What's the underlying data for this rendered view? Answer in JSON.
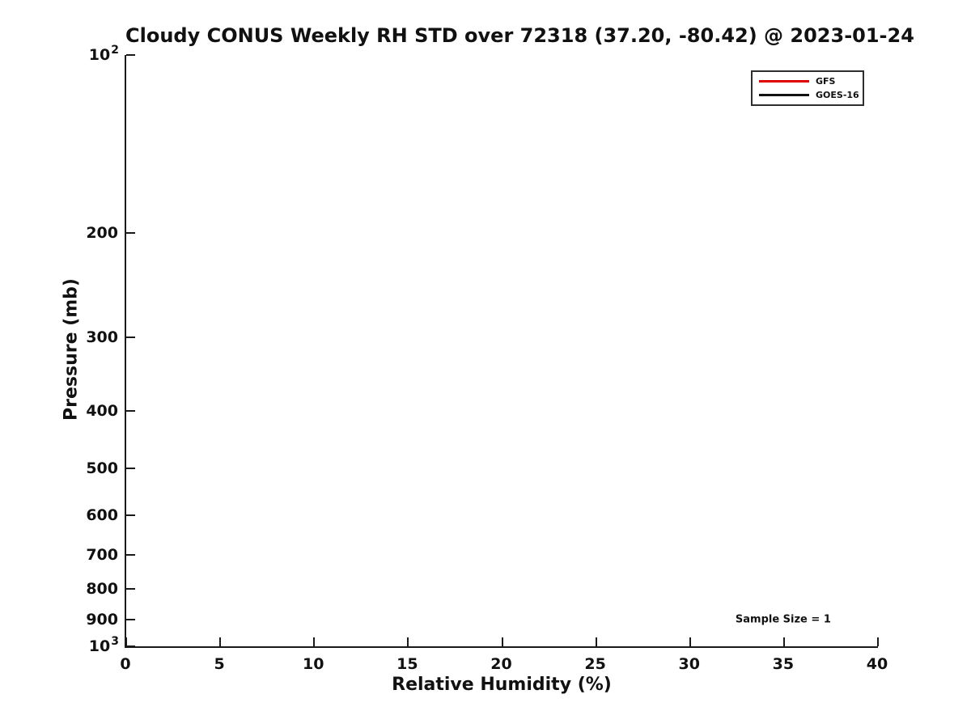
{
  "chart_data": {
    "type": "line",
    "title": "Cloudy CONUS Weekly RH STD over 72318 (37.20, -80.42) @ 2023-01-24",
    "xlabel": "Relative Humidity (%)",
    "ylabel": "Pressure (mb)",
    "grid": false,
    "x_axis": {
      "scale": "linear",
      "min": 0,
      "max": 40,
      "ticks": [
        0,
        5,
        10,
        15,
        20,
        25,
        30,
        35,
        40
      ]
    },
    "y_axis": {
      "scale": "log",
      "min": 100,
      "max": 1000,
      "inverted": true,
      "ticks": [
        {
          "value": 100,
          "label": "10^2"
        },
        {
          "value": 200,
          "label": "200"
        },
        {
          "value": 300,
          "label": "300"
        },
        {
          "value": 400,
          "label": "400"
        },
        {
          "value": 500,
          "label": "500"
        },
        {
          "value": 600,
          "label": "600"
        },
        {
          "value": 700,
          "label": "700"
        },
        {
          "value": 800,
          "label": "800"
        },
        {
          "value": 900,
          "label": "900"
        },
        {
          "value": 1000,
          "label": "10^3"
        }
      ]
    },
    "series": [
      {
        "name": "GFS",
        "color": "#e00000",
        "x": [],
        "y": []
      },
      {
        "name": "GOES-16",
        "color": "#111111",
        "x": [],
        "y": []
      }
    ],
    "legend_position": "top-right",
    "annotations": [
      {
        "text": "Sample Size = 1",
        "x": 35,
        "y": 900
      }
    ]
  },
  "colors": {
    "axis": "#1a1a1a",
    "text": "#111111",
    "legend_border": "#2e2e2e",
    "background": "#ffffff"
  }
}
